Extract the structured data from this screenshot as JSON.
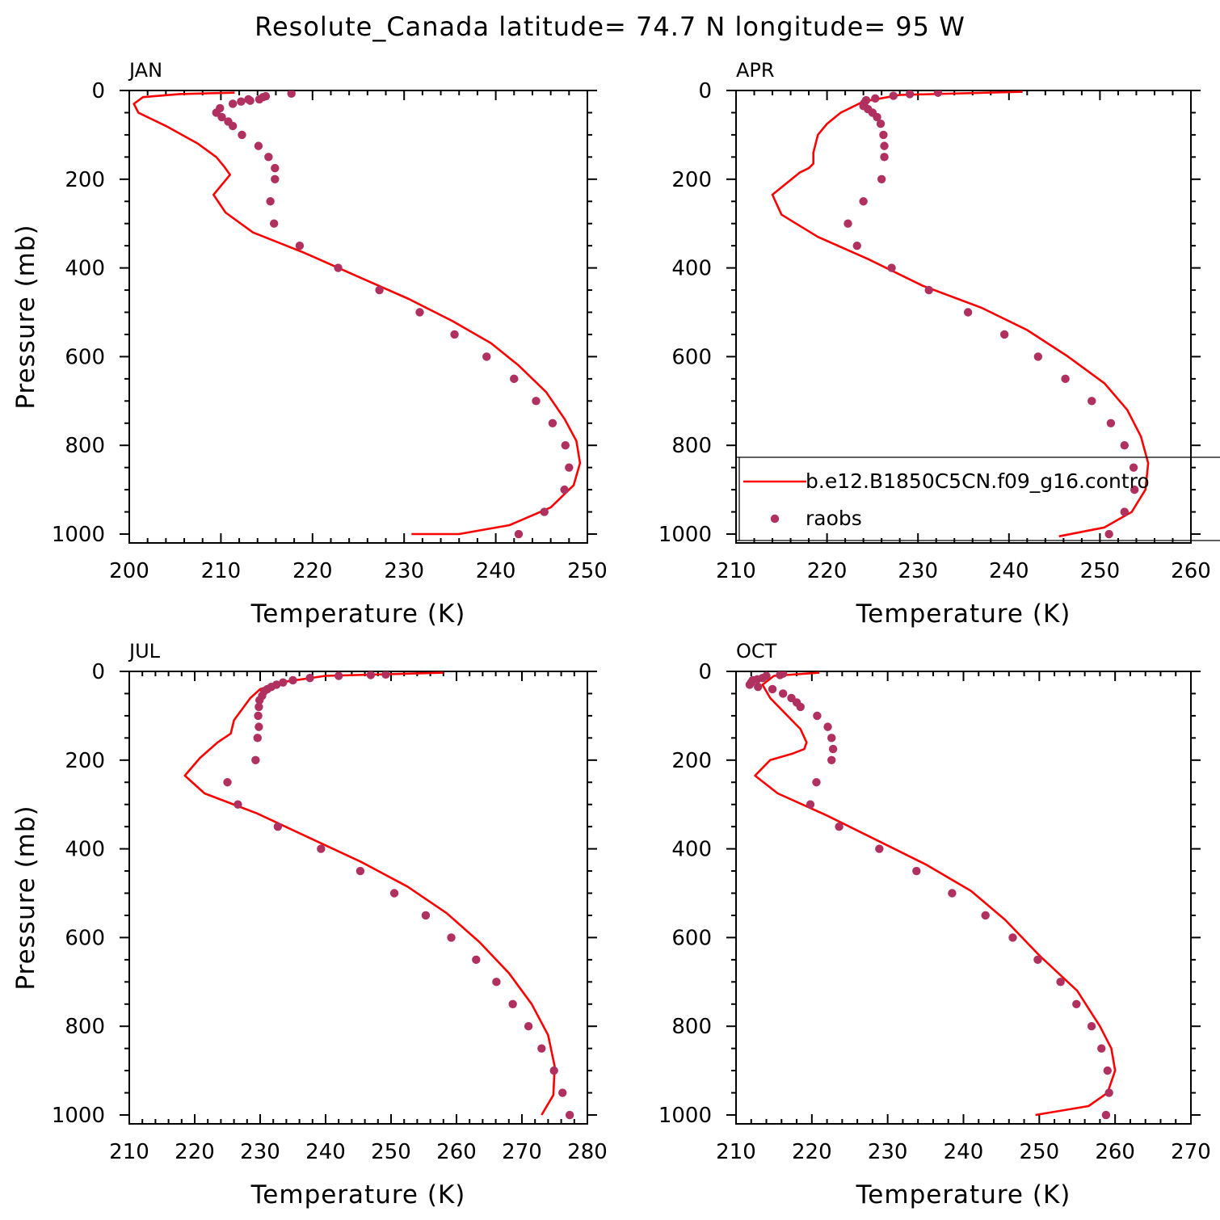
{
  "title": "Resolute_Canada  latitude= 74.7 N longitude= 95 W",
  "colors": {
    "model": "#ff0000",
    "obs": "#b03060",
    "axis": "#000000"
  },
  "legend": {
    "placement": "lower-right",
    "panel": 1,
    "model_label": "b.e12.B1850C5CN.f09_g16.contro",
    "obs_label": "raobs"
  },
  "chart_data": [
    {
      "type": "line",
      "label": "JAN",
      "xlabel": "Temperature (K)",
      "ylabel": "Pressure (mb)",
      "xlim": [
        200,
        250
      ],
      "ylim": [
        1020,
        0
      ],
      "xticks": [
        200,
        210,
        220,
        230,
        240,
        250
      ],
      "yticks": [
        0,
        200,
        400,
        600,
        800,
        1000
      ],
      "series": [
        {
          "name": "b.e12.B1850C5CN.f09_g16.contro",
          "kind": "line",
          "x": [
            211.5,
            205.5,
            201.5,
            200.5,
            201.0,
            204.0,
            207.5,
            209.5,
            210.3,
            211.0,
            210.6,
            209.2,
            210.5,
            213.5,
            219.0,
            225.0,
            230.5,
            235.3,
            239.5,
            242.5,
            245.5,
            247.5,
            248.8,
            249.2,
            248.5,
            246.0,
            241.5,
            236.0,
            230.8
          ],
          "y": [
            5,
            8,
            15,
            30,
            50,
            80,
            120,
            150,
            170,
            190,
            200,
            235,
            275,
            320,
            365,
            420,
            470,
            520,
            570,
            620,
            680,
            740,
            790,
            840,
            890,
            940,
            980,
            1000,
            1000
          ]
        },
        {
          "name": "raobs",
          "kind": "scatter",
          "x": [
            217.7,
            214.9,
            214.6,
            214.2,
            213.2,
            213.0,
            212.2,
            211.3,
            209.9,
            209.5,
            210.1,
            210.8,
            211.3,
            212.3,
            214.1,
            215.2,
            215.9,
            215.9,
            215.4,
            215.8,
            218.6,
            222.8,
            227.3,
            231.7,
            235.5,
            239.0,
            242.0,
            244.4,
            246.2,
            247.6,
            248.0,
            247.5,
            245.3,
            242.5
          ],
          "y": [
            7,
            13,
            15,
            20,
            23,
            20,
            25,
            30,
            40,
            50,
            60,
            70,
            80,
            100,
            125,
            150,
            175,
            200,
            250,
            300,
            350,
            400,
            450,
            500,
            550,
            600,
            650,
            700,
            750,
            800,
            850,
            900,
            950,
            1000
          ]
        }
      ]
    },
    {
      "type": "line",
      "label": "APR",
      "xlabel": "Temperature (K)",
      "ylabel": "",
      "xlim": [
        210,
        260
      ],
      "ylim": [
        1020,
        0
      ],
      "xticks": [
        210,
        220,
        230,
        240,
        250,
        260
      ],
      "yticks": [
        0,
        200,
        400,
        600,
        800,
        1000
      ],
      "series": [
        {
          "name": "b.e12.B1850C5CN.f09_g16.contro",
          "kind": "line",
          "x": [
            241.5,
            228.0,
            224.0,
            221.5,
            220.0,
            219.0,
            218.5,
            218.5,
            218.0,
            217.0,
            214.0,
            215.0,
            219.0,
            224.5,
            230.5,
            237.0,
            242.0,
            246.5,
            250.5,
            253.0,
            254.5,
            255.3,
            255.0,
            253.5,
            250.5,
            245.5
          ],
          "y": [
            3,
            10,
            25,
            50,
            75,
            100,
            140,
            165,
            175,
            185,
            235,
            280,
            330,
            380,
            440,
            490,
            540,
            600,
            660,
            720,
            780,
            840,
            900,
            950,
            985,
            1005
          ]
        },
        {
          "name": "raobs",
          "kind": "scatter",
          "x": [
            232.2,
            229.1,
            227.3,
            225.3,
            224.3,
            224.1,
            224.0,
            224.5,
            225.0,
            225.5,
            225.9,
            226.2,
            226.3,
            226.3,
            226.0,
            224.0,
            222.3,
            223.3,
            227.1,
            231.2,
            235.5,
            239.5,
            243.2,
            246.2,
            249.1,
            251.2,
            252.7,
            253.7,
            253.8,
            252.7,
            251.0
          ],
          "y": [
            5,
            8,
            12,
            18,
            22,
            28,
            35,
            42,
            50,
            60,
            75,
            100,
            125,
            150,
            200,
            250,
            300,
            350,
            400,
            450,
            500,
            550,
            600,
            650,
            700,
            750,
            800,
            850,
            900,
            950,
            1000
          ]
        }
      ]
    },
    {
      "type": "line",
      "label": "JUL",
      "xlabel": "Temperature (K)",
      "ylabel": "Pressure (mb)",
      "xlim": [
        210,
        280
      ],
      "ylim": [
        1020,
        0
      ],
      "xticks": [
        210,
        220,
        230,
        240,
        250,
        260,
        270,
        280
      ],
      "yticks": [
        0,
        200,
        400,
        600,
        800,
        1000
      ],
      "series": [
        {
          "name": "b.e12.B1850C5CN.f09_g16.contro",
          "kind": "line",
          "x": [
            258.0,
            240.0,
            233.0,
            230.0,
            228.5,
            227.5,
            226.0,
            225.5,
            223.5,
            220.8,
            218.5,
            221.5,
            229.5,
            237.5,
            245.5,
            252.5,
            258.5,
            263.5,
            268.0,
            271.5,
            274.0,
            275.0,
            274.8,
            273.0
          ],
          "y": [
            3,
            10,
            25,
            40,
            60,
            80,
            110,
            140,
            160,
            195,
            235,
            275,
            320,
            375,
            430,
            485,
            545,
            610,
            680,
            750,
            820,
            890,
            955,
            1000
          ]
        },
        {
          "name": "raobs",
          "kind": "scatter",
          "x": [
            249.2,
            246.9,
            242.0,
            237.6,
            235.0,
            233.5,
            232.5,
            231.7,
            231.1,
            230.6,
            230.3,
            229.9,
            229.8,
            229.7,
            229.8,
            229.6,
            229.3,
            225.0,
            226.6,
            232.7,
            239.3,
            245.3,
            250.5,
            255.3,
            259.2,
            263.0,
            266.1,
            268.6,
            271.0,
            273.0,
            274.9,
            276.2,
            277.3
          ],
          "y": [
            7,
            8,
            10,
            15,
            20,
            25,
            30,
            35,
            40,
            45,
            55,
            65,
            80,
            100,
            125,
            150,
            200,
            250,
            300,
            350,
            400,
            450,
            500,
            550,
            600,
            650,
            700,
            750,
            800,
            850,
            900,
            950,
            1000
          ]
        }
      ]
    },
    {
      "type": "line",
      "label": "OCT",
      "xlabel": "Temperature (K)",
      "ylabel": "",
      "xlim": [
        210,
        270
      ],
      "ylim": [
        1020,
        0
      ],
      "xticks": [
        210,
        220,
        230,
        240,
        250,
        260,
        270
      ],
      "yticks": [
        0,
        200,
        400,
        600,
        800,
        1000
      ],
      "series": [
        {
          "name": "b.e12.B1850C5CN.f09_g16.contro",
          "kind": "line",
          "x": [
            221.0,
            215.0,
            213.5,
            214.5,
            216.5,
            218.5,
            219.3,
            219.0,
            217.5,
            214.5,
            212.5,
            215.5,
            222.0,
            228.5,
            235.0,
            241.0,
            245.5,
            250.0,
            255.0,
            258.0,
            259.5,
            260.0,
            259.0,
            256.5,
            249.5
          ],
          "y": [
            3,
            10,
            30,
            60,
            95,
            130,
            160,
            175,
            185,
            200,
            235,
            275,
            325,
            380,
            435,
            495,
            560,
            640,
            720,
            800,
            850,
            900,
            950,
            980,
            1000
          ]
        },
        {
          "name": "raobs",
          "kind": "scatter",
          "x": [
            216.2,
            215.8,
            214.0,
            213.5,
            212.8,
            212.2,
            212.0,
            211.8,
            212.9,
            214.8,
            216.2,
            217.3,
            218.0,
            218.5,
            220.7,
            222.1,
            222.6,
            222.8,
            222.6,
            220.6,
            219.8,
            223.6,
            228.9,
            233.8,
            238.5,
            242.9,
            246.5,
            249.8,
            252.8,
            254.9,
            256.9,
            258.2,
            259.0,
            259.2,
            258.8
          ],
          "y": [
            5,
            8,
            10,
            15,
            18,
            20,
            25,
            30,
            35,
            40,
            50,
            60,
            70,
            80,
            100,
            125,
            150,
            175,
            200,
            250,
            300,
            350,
            400,
            450,
            500,
            550,
            600,
            650,
            700,
            750,
            800,
            850,
            900,
            950,
            1000
          ]
        }
      ]
    }
  ]
}
